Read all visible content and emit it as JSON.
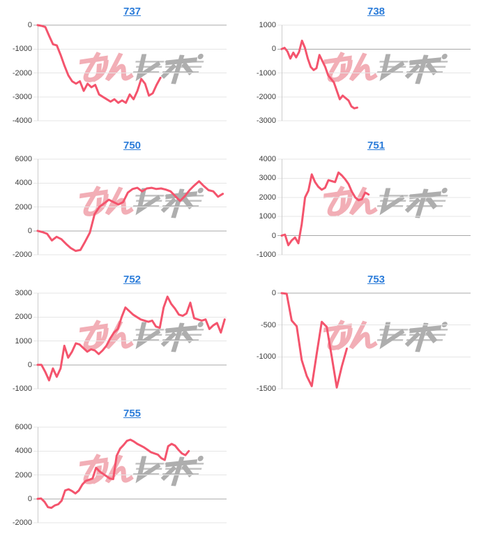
{
  "style": {
    "background": "#ffffff",
    "line_color": "#f4546d",
    "grid_color": "#e5e5e5",
    "zero_line_color": "#a8a8a8",
    "axis_color": "#cccccc",
    "tick_label_color": "#3c3c3c",
    "title_color": "#2b7cd9"
  },
  "watermark": {
    "text": "みんレポ",
    "part_pink": "みん",
    "part_gray": "レポ",
    "pink_color": "#f2aeb6",
    "gray_color": "#aeaeae"
  },
  "chart_data": [
    {
      "id": "737",
      "title": "737",
      "type": "line",
      "ylim": [
        -4000,
        0
      ],
      "yticks": [
        0,
        -1000,
        -2000,
        -3000,
        -4000
      ],
      "grid": "horizontal",
      "legend": "none",
      "span_fraction": 0.65,
      "values": [
        0,
        -30,
        -80,
        -450,
        -800,
        -850,
        -1250,
        -1700,
        -2100,
        -2350,
        -2450,
        -2350,
        -2750,
        -2450,
        -2600,
        -2500,
        -2900,
        -3000,
        -3100,
        -3200,
        -3100,
        -3250,
        -3150,
        -3250,
        -2900,
        -3100,
        -2750,
        -2250,
        -2450,
        -2950,
        -2850,
        -2500,
        -2200
      ]
    },
    {
      "id": "738",
      "title": "738",
      "type": "line",
      "ylim": [
        -3000,
        1000
      ],
      "yticks": [
        1000,
        0,
        -1000,
        -2000,
        -3000
      ],
      "grid": "horizontal",
      "legend": "none",
      "span_fraction": 0.4,
      "values": [
        0,
        50,
        -100,
        -400,
        -150,
        -350,
        -120,
        350,
        50,
        -400,
        -750,
        -880,
        -800,
        -250,
        -500,
        -750,
        -1100,
        -1250,
        -1400,
        -1750,
        -2100,
        -1950,
        -2050,
        -2150,
        -2400,
        -2480,
        -2450
      ]
    },
    {
      "id": "750",
      "title": "750",
      "type": "line",
      "ylim": [
        -2000,
        6000
      ],
      "yticks": [
        6000,
        4000,
        2000,
        0,
        -2000
      ],
      "grid": "horizontal",
      "legend": "none",
      "span_fraction": 0.98,
      "values": [
        0,
        -100,
        -250,
        -800,
        -500,
        -700,
        -1100,
        -1450,
        -1680,
        -1600,
        -900,
        -150,
        1400,
        2000,
        2300,
        2600,
        2400,
        2200,
        2400,
        3200,
        3500,
        3600,
        3300,
        3550,
        3600,
        3500,
        3550,
        3450,
        3300,
        2900,
        2500,
        2900,
        3400,
        3800,
        4150,
        3750,
        3400,
        3300,
        2850,
        3100
      ]
    },
    {
      "id": "751",
      "title": "751",
      "type": "line",
      "ylim": [
        -1000,
        4000
      ],
      "yticks": [
        4000,
        3000,
        2000,
        1000,
        0,
        -1000
      ],
      "grid": "horizontal",
      "legend": "none",
      "span_fraction": 0.46,
      "values": [
        0,
        50,
        -500,
        -250,
        -100,
        -400,
        600,
        2000,
        2350,
        3200,
        2800,
        2550,
        2400,
        2500,
        2900,
        2850,
        2800,
        3300,
        3150,
        2950,
        2700,
        2300,
        2000,
        1850,
        1900,
        2250,
        2150
      ]
    },
    {
      "id": "752",
      "title": "752",
      "type": "line",
      "ylim": [
        -1000,
        3000
      ],
      "yticks": [
        3000,
        2000,
        1000,
        0,
        -1000
      ],
      "grid": "horizontal",
      "legend": "none",
      "span_fraction": 0.99,
      "values": [
        0,
        0,
        -300,
        -650,
        -150,
        -500,
        -150,
        800,
        300,
        550,
        900,
        850,
        700,
        550,
        650,
        600,
        450,
        600,
        800,
        1100,
        1350,
        1500,
        2000,
        2400,
        2250,
        2100,
        2000,
        1900,
        1850,
        1800,
        1850,
        1600,
        1550,
        2400,
        2850,
        2550,
        2350,
        2100,
        2050,
        2150,
        2600,
        1950,
        1900,
        1850,
        1900,
        1500,
        1650,
        1750,
        1350,
        1900
      ]
    },
    {
      "id": "753",
      "title": "753",
      "type": "line",
      "ylim": [
        -1500,
        0
      ],
      "yticks": [
        0,
        -500,
        -1000,
        -1500
      ],
      "grid": "horizontal",
      "legend": "none",
      "span_fraction": 0.345,
      "values": [
        0,
        -10,
        -430,
        -520,
        -1050,
        -1300,
        -1460,
        -950,
        -450,
        -530,
        -1000,
        -1480,
        -1150,
        -870
      ]
    },
    {
      "id": "755",
      "title": "755",
      "type": "line",
      "ylim": [
        -2000,
        6000
      ],
      "yticks": [
        6000,
        4000,
        2000,
        0,
        -2000
      ],
      "grid": "horizontal",
      "legend": "none",
      "span_fraction": 0.8,
      "values": [
        0,
        30,
        -250,
        -700,
        -750,
        -550,
        -450,
        -150,
        700,
        800,
        650,
        450,
        700,
        1200,
        1500,
        1600,
        1700,
        2600,
        2300,
        2100,
        1900,
        1700,
        1650,
        3600,
        4200,
        4500,
        4850,
        4950,
        4800,
        4600,
        4450,
        4300,
        4100,
        3900,
        3800,
        3700,
        3400,
        3250,
        4400,
        4600,
        4450,
        4100,
        3800,
        3650,
        4000
      ]
    }
  ]
}
